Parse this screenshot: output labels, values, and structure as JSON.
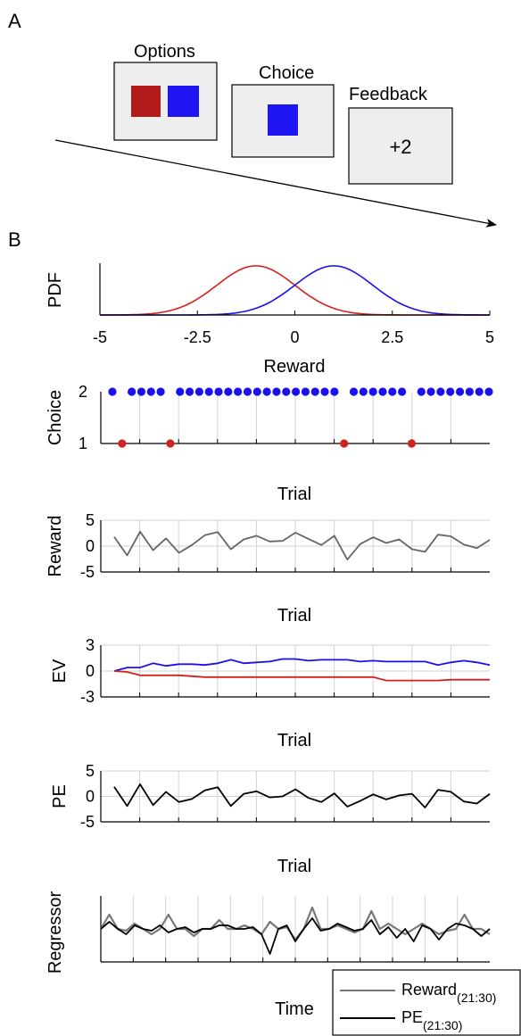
{
  "panelA": {
    "label": "A",
    "options_title": "Options",
    "choice_title": "Choice",
    "feedback_title": "Feedback",
    "feedback_value": "+2",
    "colors": {
      "red": "#b01a1a",
      "blue": "#1f14f2",
      "box_fill": "#eeeeee"
    }
  },
  "panelB": {
    "label": "B"
  },
  "chart_data": [
    {
      "type": "line",
      "ylabel": "PDF",
      "xlabel": "Reward",
      "xlim": [
        -5,
        5
      ],
      "xticks": [
        "-5",
        "-2.5",
        "0",
        "2.5",
        "5"
      ],
      "series": [
        {
          "color": "#d42020",
          "mean": -1,
          "sd": 1
        },
        {
          "color": "#1a10ee",
          "mean": 1,
          "sd": 1
        }
      ]
    },
    {
      "type": "scatter",
      "ylabel": "Choice",
      "xlabel": "Trial",
      "ylim": [
        1,
        2
      ],
      "yticks": [
        "1",
        "2"
      ],
      "grid": true,
      "x": [
        1,
        2,
        3,
        4,
        5,
        6,
        7,
        8,
        9,
        10,
        11,
        12,
        13,
        14,
        15,
        16,
        17,
        18,
        19,
        20,
        21,
        22,
        23,
        24,
        25,
        26,
        27,
        28,
        29,
        30,
        31,
        32,
        33,
        34,
        35,
        36,
        37,
        38,
        39,
        40
      ],
      "values": [
        2,
        1,
        2,
        2,
        2,
        2,
        1,
        2,
        2,
        2,
        2,
        2,
        2,
        2,
        2,
        2,
        2,
        2,
        2,
        2,
        2,
        2,
        2,
        2,
        1,
        2,
        2,
        2,
        2,
        2,
        2,
        1,
        2,
        2,
        2,
        2,
        2,
        2,
        2,
        2
      ],
      "colors": {
        "1": "#d42020",
        "2": "#1a10ee"
      }
    },
    {
      "type": "line",
      "ylabel": "Reward",
      "xlabel": "Trial",
      "ylim": [
        -5,
        5
      ],
      "yticks": [
        "-5",
        "0",
        "5"
      ],
      "grid": true,
      "series": [
        {
          "color": "#666666",
          "values": [
            1.8,
            -1.8,
            2.8,
            -0.8,
            1.5,
            -1.3,
            0.2,
            2.1,
            2.7,
            -0.6,
            1.3,
            2.0,
            0.9,
            1.0,
            2.6,
            1.4,
            0.2,
            2.0,
            -2.6,
            0.4,
            1.7,
            0.6,
            1.3,
            -0.6,
            -1.1,
            2.2,
            1.9,
            0.3,
            -0.4,
            1.2
          ]
        }
      ]
    },
    {
      "type": "line",
      "ylabel": "EV",
      "xlabel": "Trial",
      "ylim": [
        -3,
        3
      ],
      "yticks": [
        "-3",
        "0",
        "3"
      ],
      "grid": true,
      "series": [
        {
          "color": "#1a10ee",
          "values": [
            0,
            0.4,
            0.4,
            0.9,
            0.6,
            0.8,
            0.8,
            0.7,
            0.9,
            1.3,
            0.9,
            1.0,
            1.1,
            1.4,
            1.4,
            1.2,
            1.3,
            1.3,
            1.3,
            1.1,
            1.2,
            1.1,
            1.1,
            1.1,
            1.1,
            0.7,
            1.0,
            1.2,
            1.0,
            0.7
          ]
        },
        {
          "color": "#d42020",
          "values": [
            0,
            -0.1,
            -0.5,
            -0.5,
            -0.5,
            -0.5,
            -0.6,
            -0.7,
            -0.7,
            -0.7,
            -0.7,
            -0.7,
            -0.7,
            -0.7,
            -0.7,
            -0.7,
            -0.7,
            -0.7,
            -0.7,
            -0.7,
            -0.7,
            -1.1,
            -1.1,
            -1.1,
            -1.1,
            -1.1,
            -1.0,
            -1.0,
            -1.0,
            -1.0
          ]
        }
      ]
    },
    {
      "type": "line",
      "ylabel": "PE",
      "xlabel": "Trial",
      "ylim": [
        -5,
        5
      ],
      "yticks": [
        "-5",
        "0",
        "5"
      ],
      "grid": true,
      "series": [
        {
          "color": "#000000",
          "values": [
            1.9,
            -1.9,
            2.4,
            -1.7,
            0.9,
            -1.1,
            -0.5,
            1.2,
            1.8,
            -1.9,
            0.5,
            1.0,
            -0.2,
            0.0,
            1.4,
            -0.3,
            -1.1,
            0.6,
            -2.0,
            -0.9,
            0.4,
            -0.6,
            0.2,
            0.5,
            -2.2,
            1.3,
            0.9,
            -1.0,
            -1.4,
            0.5
          ]
        }
      ]
    },
    {
      "type": "line",
      "ylabel": "Regressor",
      "xlabel": "Time",
      "grid": true,
      "legend": "bottom-right",
      "series": [
        {
          "name": "Reward",
          "name_sub": "(21:30)",
          "color": "#777777",
          "values": [
            0,
            0.8,
            0,
            -0.1,
            0.3,
            0,
            -0.3,
            0,
            0.8,
            0,
            0,
            -0.4,
            0,
            0,
            0.5,
            0,
            0,
            0.2,
            0,
            -0.3,
            0.4,
            0,
            0.1,
            -0.6,
            0,
            1.2,
            0,
            0,
            0.2,
            0,
            -0.2,
            0,
            1.0,
            0,
            0.3,
            0,
            -0.3,
            0,
            0.3,
            0,
            -0.3,
            -0.1,
            0,
            0.8,
            0,
            0,
            -0.3
          ]
        },
        {
          "name": "PE",
          "name_sub": "(21:30)",
          "color": "#000000",
          "values": [
            0,
            0.4,
            0,
            -0.3,
            0.2,
            0,
            -0.1,
            0.2,
            -0.2,
            0,
            0.1,
            -0.2,
            0,
            0,
            0.2,
            0.2,
            0,
            0,
            0.1,
            -0.3,
            -1.4,
            0,
            0.2,
            -0.7,
            0,
            0.6,
            -0.1,
            0,
            0.3,
            0.1,
            -0.1,
            0,
            0.5,
            -0.3,
            0.1,
            -0.5,
            0,
            -0.7,
            0.2,
            0,
            -0.6,
            0,
            0.3,
            0.2,
            0,
            -0.4,
            0
          ]
        }
      ]
    }
  ]
}
